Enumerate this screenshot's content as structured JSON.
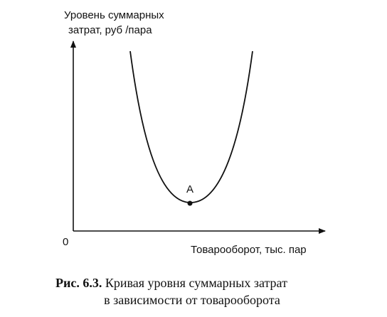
{
  "axes": {
    "y_label": [
      "Уровень суммарных",
      "затрат, руб /пара"
    ],
    "origin": "0",
    "x_label": "Товарооборот, тыс. пар"
  },
  "points": [
    {
      "label": "A"
    }
  ],
  "caption": {
    "number": "Рис. 6.3.",
    "lines": [
      "Кривая уровня суммарных затрат",
      "в зависимости от товарооборота"
    ]
  }
}
